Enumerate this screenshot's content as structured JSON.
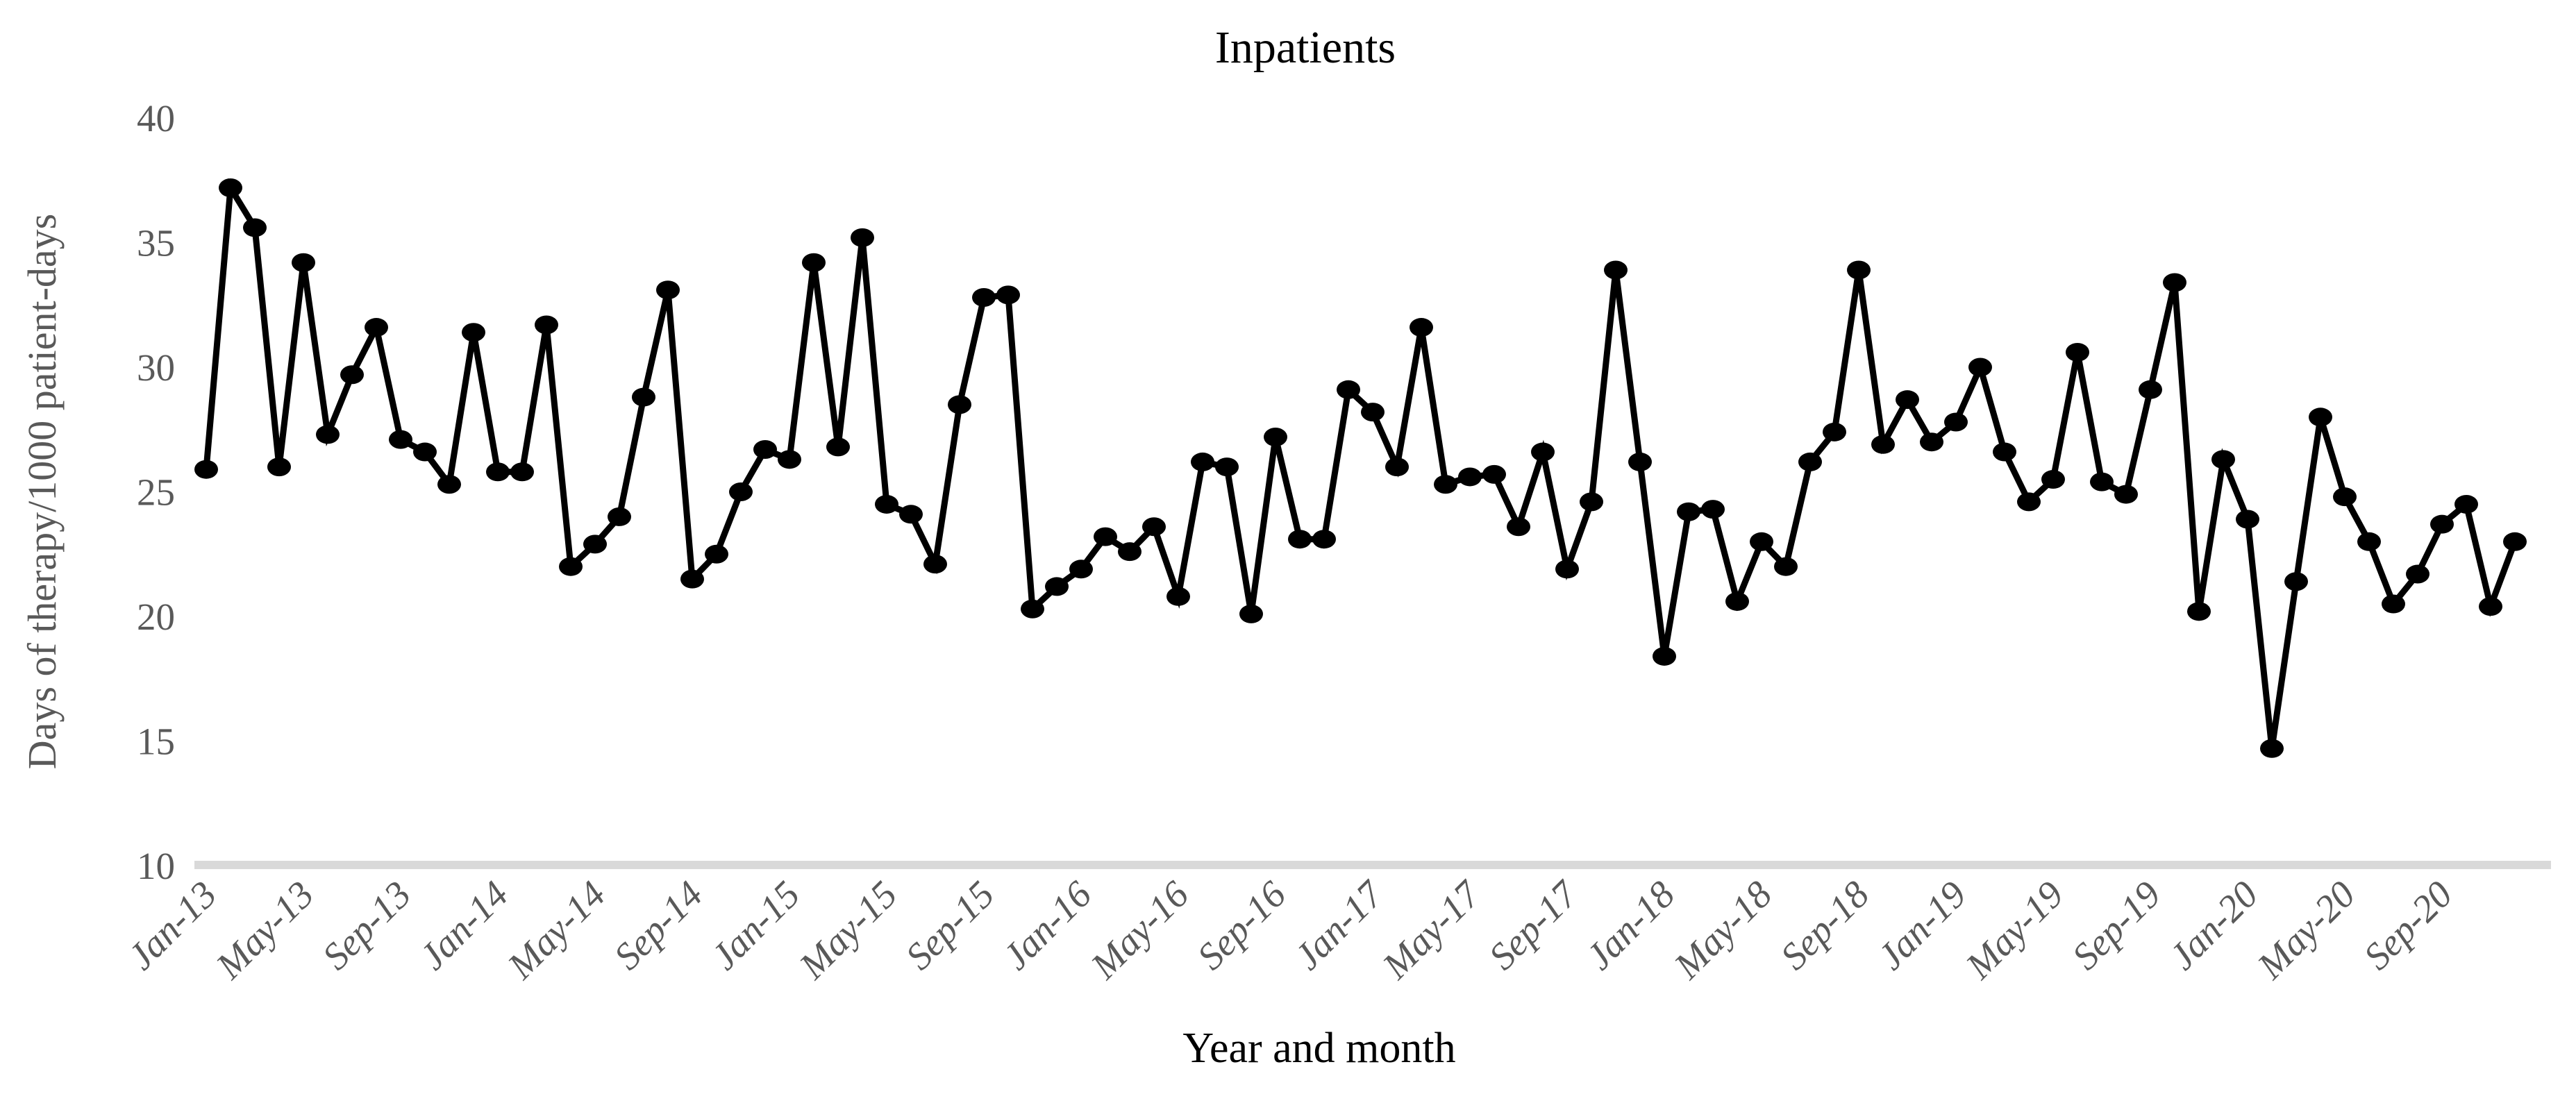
{
  "chart_data": {
    "type": "line",
    "title": "Inpatients",
    "xlabel": "Year and month",
    "ylabel": "Days of therapy/1000 patient-days",
    "ylim": [
      10,
      40
    ],
    "yticks": [
      10,
      15,
      20,
      25,
      30,
      35,
      40
    ],
    "x_tick_every": 4,
    "x_tick_labels": [
      "Jan-13",
      "May-13",
      "Sep-13",
      "Jan-14",
      "May-14",
      "Sep-14",
      "Jan-15",
      "May-15",
      "Sep-15",
      "Jan-16",
      "May-16",
      "Sep-16",
      "Jan-17",
      "May-17",
      "Sep-17",
      "Jan-18",
      "May-18",
      "Sep-18",
      "Jan-19",
      "May-19",
      "Sep-19",
      "Jan-20",
      "May-20",
      "Sep-20"
    ],
    "grid": false,
    "legend": false,
    "series_color": "#000000",
    "categories": [
      "Jan-13",
      "Feb-13",
      "Mar-13",
      "Apr-13",
      "May-13",
      "Jun-13",
      "Jul-13",
      "Aug-13",
      "Sep-13",
      "Oct-13",
      "Nov-13",
      "Dec-13",
      "Jan-14",
      "Feb-14",
      "Mar-14",
      "Apr-14",
      "May-14",
      "Jun-14",
      "Jul-14",
      "Aug-14",
      "Sep-14",
      "Oct-14",
      "Nov-14",
      "Dec-14",
      "Jan-15",
      "Feb-15",
      "Mar-15",
      "Apr-15",
      "May-15",
      "Jun-15",
      "Jul-15",
      "Aug-15",
      "Sep-15",
      "Oct-15",
      "Nov-15",
      "Dec-15",
      "Jan-16",
      "Feb-16",
      "Mar-16",
      "Apr-16",
      "May-16",
      "Jun-16",
      "Jul-16",
      "Aug-16",
      "Sep-16",
      "Oct-16",
      "Nov-16",
      "Dec-16",
      "Jan-17",
      "Feb-17",
      "Mar-17",
      "Apr-17",
      "May-17",
      "Jun-17",
      "Jul-17",
      "Aug-17",
      "Sep-17",
      "Oct-17",
      "Nov-17",
      "Dec-17",
      "Jan-18",
      "Feb-18",
      "Mar-18",
      "Apr-18",
      "May-18",
      "Jun-18",
      "Jul-18",
      "Aug-18",
      "Sep-18",
      "Oct-18",
      "Nov-18",
      "Dec-18",
      "Jan-19",
      "Feb-19",
      "Mar-19",
      "Apr-19",
      "May-19",
      "Jun-19",
      "Jul-19",
      "Aug-19",
      "Sep-19",
      "Oct-19",
      "Nov-19",
      "Dec-19",
      "Jan-20",
      "Feb-20",
      "Mar-20",
      "Apr-20",
      "May-20",
      "Jun-20",
      "Jul-20",
      "Aug-20",
      "Sep-20",
      "Oct-20",
      "Nov-20",
      "Dec-20"
    ],
    "values": [
      25.9,
      37.2,
      35.6,
      26.0,
      34.2,
      27.3,
      29.7,
      31.6,
      27.1,
      26.6,
      25.3,
      31.4,
      25.8,
      25.8,
      31.7,
      22.0,
      22.9,
      24.0,
      28.8,
      33.1,
      21.5,
      22.5,
      25.0,
      26.7,
      26.3,
      34.2,
      26.8,
      35.2,
      24.5,
      24.1,
      22.1,
      28.5,
      32.8,
      32.9,
      20.3,
      21.2,
      21.9,
      23.2,
      22.6,
      23.6,
      20.8,
      26.2,
      26.0,
      20.1,
      27.2,
      23.1,
      23.1,
      29.1,
      28.2,
      26.0,
      31.6,
      25.3,
      25.6,
      25.7,
      23.6,
      26.6,
      21.9,
      24.6,
      33.9,
      26.2,
      18.4,
      24.2,
      24.3,
      20.6,
      23.0,
      22.0,
      26.2,
      27.4,
      33.9,
      26.9,
      28.7,
      27.0,
      27.8,
      30.0,
      26.6,
      24.6,
      25.5,
      30.6,
      25.4,
      24.9,
      29.1,
      33.4,
      20.2,
      26.3,
      23.9,
      14.7,
      21.4,
      28.0,
      24.8,
      23.0,
      20.5,
      21.7,
      23.7,
      24.5,
      20.4,
      23.0
    ]
  },
  "styles": {
    "line_color": "#000000",
    "marker_color": "#000000",
    "tick_label_color": "#595959",
    "axis_line_color": "#d9d9d9",
    "title_color": "#000000",
    "background_color": "#ffffff"
  }
}
